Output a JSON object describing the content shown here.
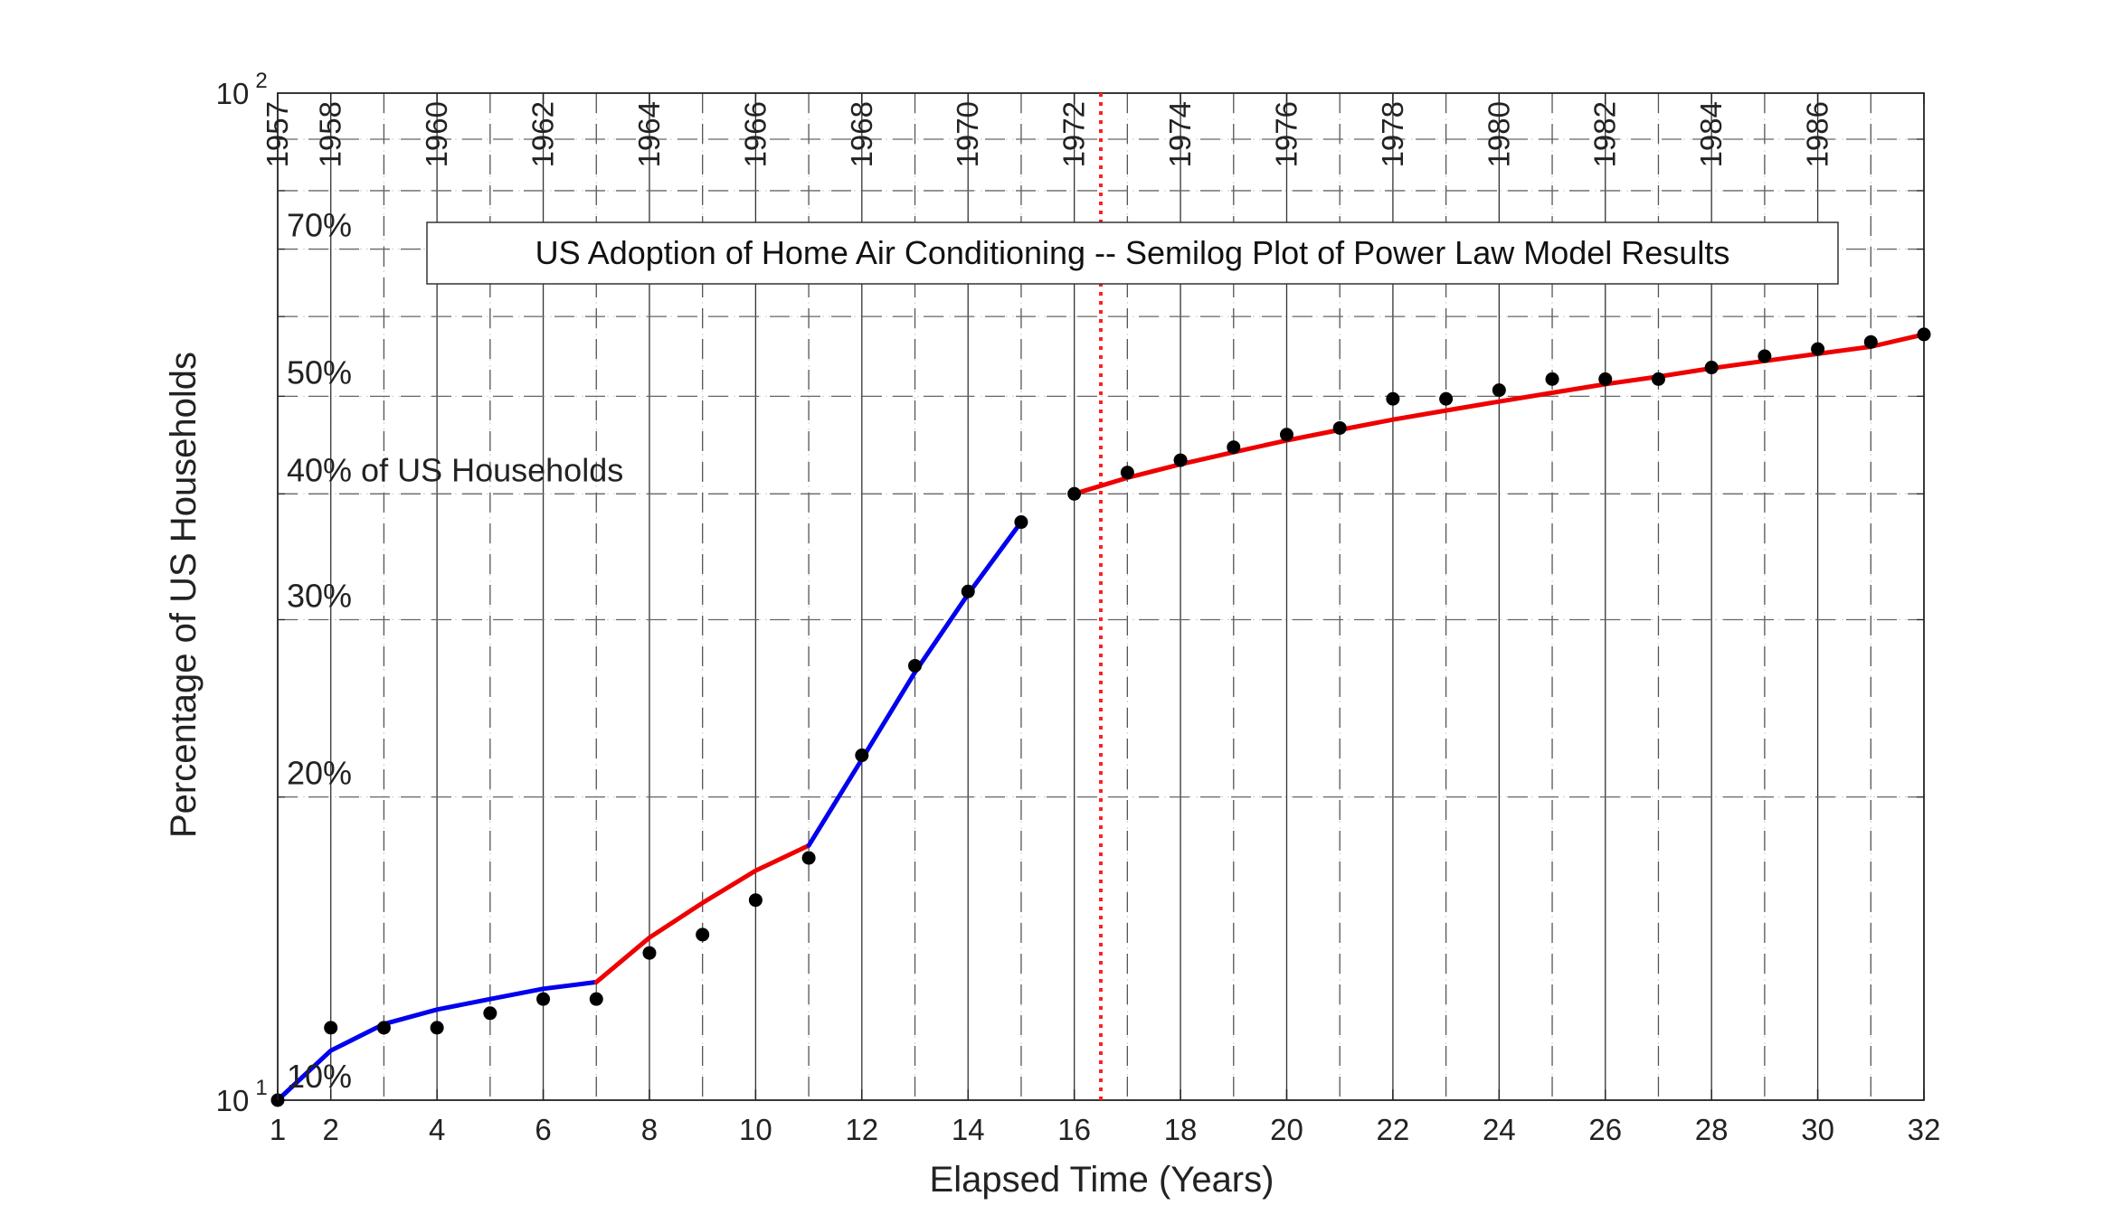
{
  "chart_data": {
    "type": "line",
    "title": "US Adoption of Home Air Conditioning -- Semilog Plot of Power Law Model Results",
    "xlabel": "Elapsed Time (Years)",
    "ylabel": "Percentage of US Households",
    "y_scale": "log",
    "xlim": [
      1,
      32
    ],
    "ylim": [
      10,
      100
    ],
    "x_ticks": [
      1,
      2,
      4,
      6,
      8,
      10,
      12,
      14,
      16,
      18,
      20,
      22,
      24,
      26,
      28,
      30,
      32
    ],
    "y_ticks": [
      {
        "value": 10,
        "base": "10",
        "exponent": "1"
      },
      {
        "value": 100,
        "base": "10",
        "exponent": "2"
      }
    ],
    "percent_annotations": [
      {
        "value": 10,
        "label": "10%"
      },
      {
        "value": 20,
        "label": "20%"
      },
      {
        "value": 30,
        "label": "30%"
      },
      {
        "value": 40,
        "label": "40% of US Households"
      },
      {
        "value": 50,
        "label": "50%"
      },
      {
        "value": 70,
        "label": "70%"
      }
    ],
    "year_labels": [
      {
        "x": 1,
        "label": "1957"
      },
      {
        "x": 2,
        "label": "1958"
      },
      {
        "x": 4,
        "label": "1960"
      },
      {
        "x": 6,
        "label": "1962"
      },
      {
        "x": 8,
        "label": "1964"
      },
      {
        "x": 10,
        "label": "1966"
      },
      {
        "x": 12,
        "label": "1968"
      },
      {
        "x": 14,
        "label": "1970"
      },
      {
        "x": 16,
        "label": "1972"
      },
      {
        "x": 18,
        "label": "1974"
      },
      {
        "x": 20,
        "label": "1976"
      },
      {
        "x": 22,
        "label": "1978"
      },
      {
        "x": 24,
        "label": "1980"
      },
      {
        "x": 26,
        "label": "1982"
      },
      {
        "x": 28,
        "label": "1984"
      },
      {
        "x": 30,
        "label": "1986"
      }
    ],
    "solid_vlines": [
      2,
      4,
      6,
      8,
      10,
      12,
      14,
      16,
      18,
      20,
      22,
      24,
      26,
      28,
      30
    ],
    "dashed_vlines": [
      3,
      5,
      7,
      9,
      11,
      13,
      15,
      17,
      19,
      21,
      23,
      25,
      27,
      29,
      31
    ],
    "dashed_hlines": [
      20,
      30,
      40,
      50,
      60,
      70,
      80,
      90
    ],
    "marker_line": {
      "x": 16.5,
      "color": "#ff2020"
    },
    "data_points": {
      "x": [
        1,
        2,
        3,
        4,
        5,
        6,
        7,
        8,
        9,
        10,
        11,
        12,
        13,
        14,
        15,
        16,
        17,
        18,
        19,
        20,
        21,
        22,
        23,
        24,
        25,
        26,
        27,
        28,
        29,
        30,
        31,
        32
      ],
      "y": [
        10.0,
        11.8,
        11.8,
        11.8,
        12.2,
        12.6,
        12.6,
        14.0,
        14.6,
        15.8,
        17.4,
        22.0,
        27.0,
        32.0,
        37.5,
        40.0,
        42.0,
        43.2,
        44.5,
        45.8,
        46.5,
        49.7,
        49.7,
        50.7,
        52.0,
        52.0,
        52.0,
        53.4,
        54.8,
        55.7,
        56.6,
        57.6
      ]
    },
    "model_segments": [
      {
        "color": "#0000ee",
        "x": [
          1,
          2,
          3,
          4,
          5,
          6,
          7
        ],
        "y": [
          10.0,
          11.2,
          11.9,
          12.3,
          12.6,
          12.9,
          13.1
        ]
      },
      {
        "color": "#ee0000",
        "x": [
          7,
          8,
          9,
          10,
          11
        ],
        "y": [
          13.1,
          14.5,
          15.7,
          16.9,
          17.9
        ]
      },
      {
        "color": "#0000ee",
        "x": [
          11,
          12,
          13,
          14,
          15
        ],
        "y": [
          17.9,
          21.8,
          26.6,
          31.8,
          37.5
        ]
      },
      {
        "color": "#ee0000",
        "x": [
          16,
          17,
          18,
          19,
          20,
          21,
          22,
          23,
          24,
          25,
          26,
          27,
          28,
          29,
          30,
          31,
          32
        ],
        "y": [
          40.0,
          41.5,
          42.8,
          44.0,
          45.2,
          46.3,
          47.4,
          48.4,
          49.4,
          50.4,
          51.4,
          52.3,
          53.3,
          54.2,
          55.1,
          56.0,
          57.6
        ]
      }
    ],
    "colors": {
      "blue_model": "#0000ee",
      "red_model": "#ee0000",
      "points": "#000000"
    },
    "grid": true
  }
}
